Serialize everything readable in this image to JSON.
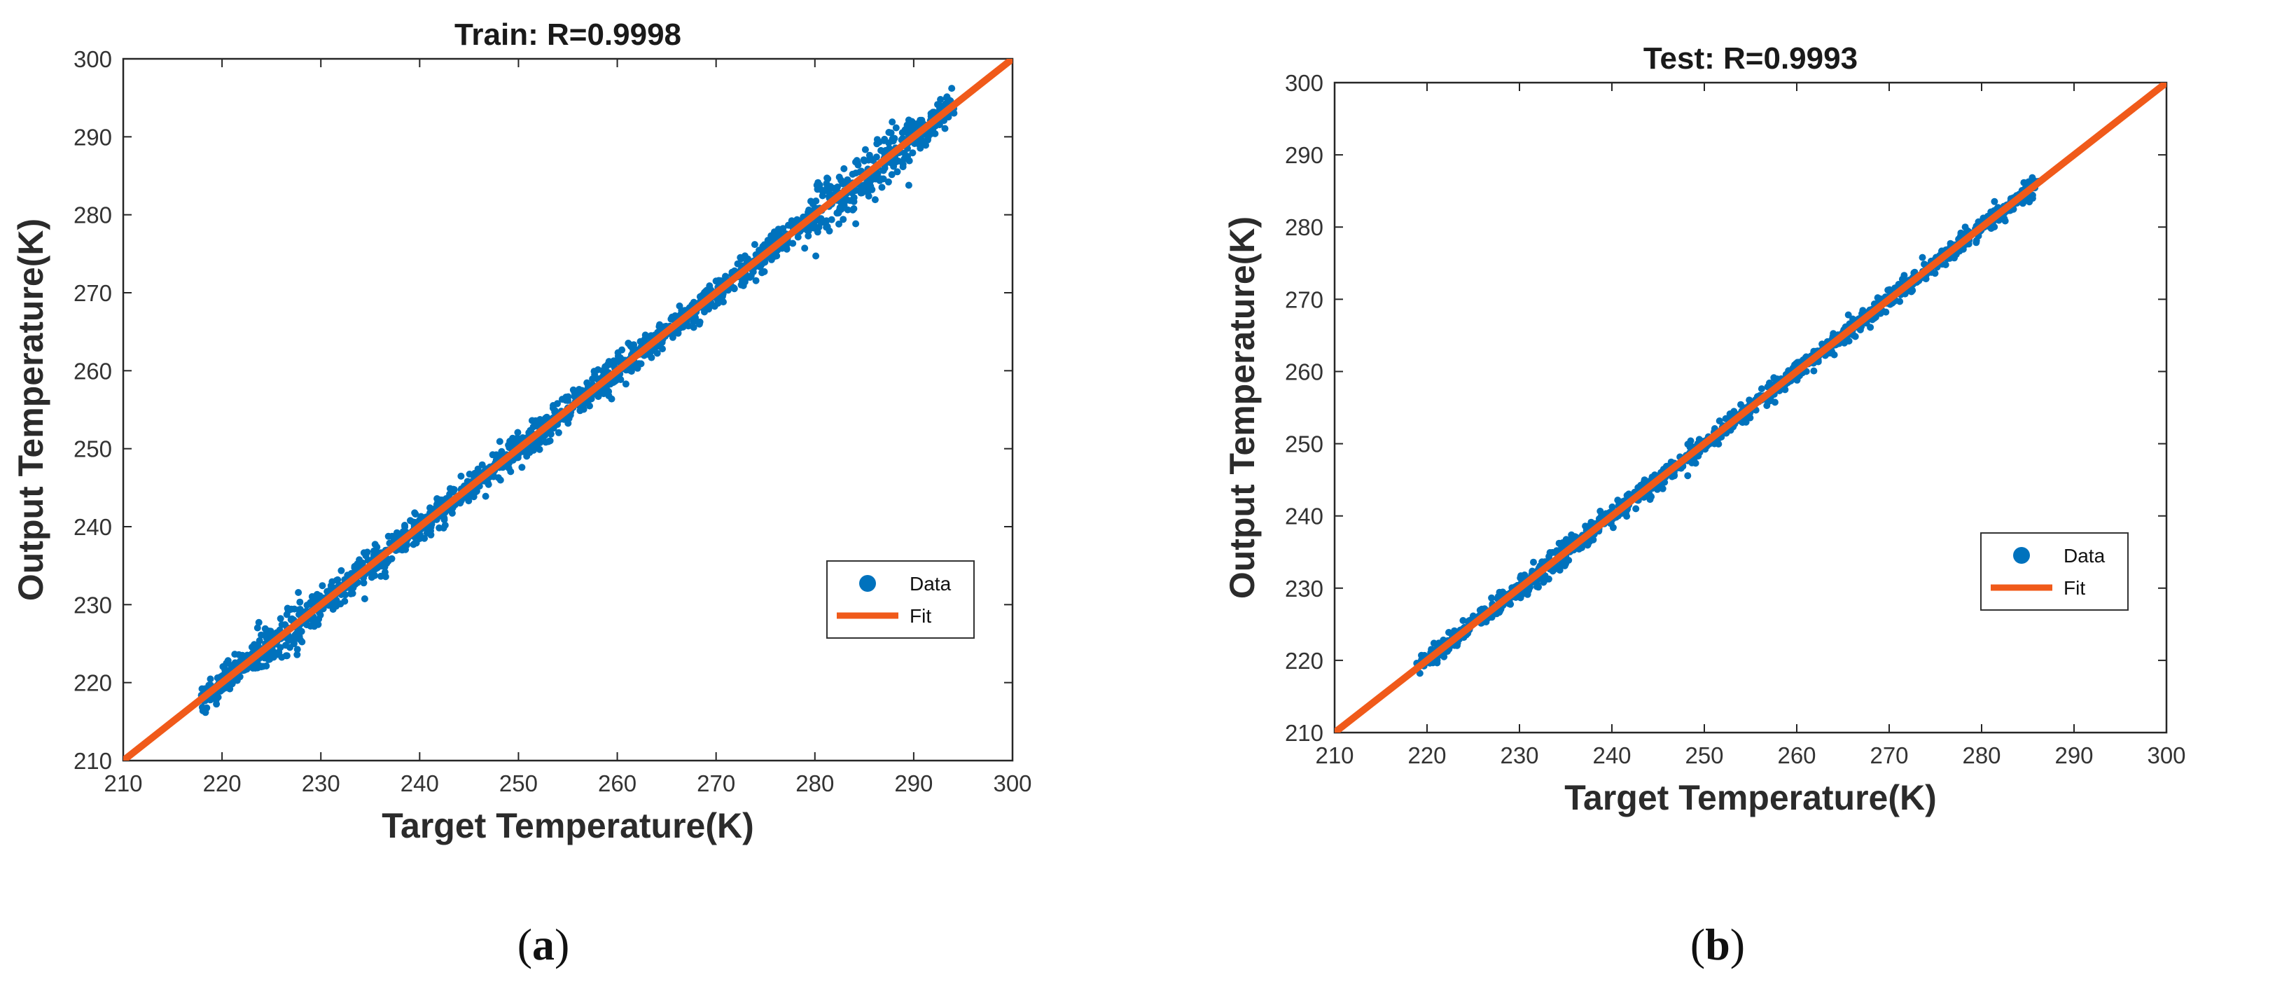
{
  "chart_data": [
    {
      "type": "scatter",
      "panel": "(a)",
      "panel_letter": "a",
      "title": "Train: R=0.9998",
      "xlabel": "Target Temperature(K)",
      "ylabel": "Output Temperature(K)",
      "xlim": [
        210,
        300
      ],
      "ylim": [
        210,
        300
      ],
      "xticks": [
        210,
        220,
        230,
        240,
        250,
        260,
        270,
        280,
        290,
        300
      ],
      "yticks": [
        210,
        220,
        230,
        240,
        250,
        260,
        270,
        280,
        290,
        300
      ],
      "legend": {
        "position": "lower-right",
        "entries": [
          "Data",
          "Fit"
        ]
      },
      "series": [
        {
          "name": "Data",
          "kind": "points",
          "color": "#0072BD",
          "x_range": [
            218,
            294
          ],
          "spread": 1.6,
          "wide_regions": [
            [
              224,
              228,
              2.6
            ],
            [
              280,
              290,
              3.0
            ]
          ],
          "point_count": 1800
        },
        {
          "name": "Fit",
          "kind": "line",
          "color": "#F05A1A",
          "x": [
            210,
            300
          ],
          "y": [
            210,
            300
          ]
        }
      ]
    },
    {
      "type": "scatter",
      "panel": "(b)",
      "panel_letter": "b",
      "title": "Test: R=0.9993",
      "xlabel": "Target Temperature(K)",
      "ylabel": "Output Temperature(K)",
      "xlim": [
        210,
        300
      ],
      "ylim": [
        210,
        300
      ],
      "xticks": [
        210,
        220,
        230,
        240,
        250,
        260,
        270,
        280,
        290,
        300
      ],
      "yticks": [
        210,
        220,
        230,
        240,
        250,
        260,
        270,
        280,
        290,
        300
      ],
      "legend": {
        "position": "lower-right",
        "entries": [
          "Data",
          "Fit"
        ]
      },
      "series": [
        {
          "name": "Data",
          "kind": "points",
          "color": "#0072BD",
          "x_range": [
            219,
            286
          ],
          "spread": 1.1,
          "wide_regions": [
            [
              230,
              236,
              1.8
            ]
          ],
          "point_count": 1300
        },
        {
          "name": "Fit",
          "kind": "line",
          "color": "#F05A1A",
          "x": [
            210,
            300
          ],
          "y": [
            210,
            300
          ]
        }
      ]
    }
  ]
}
